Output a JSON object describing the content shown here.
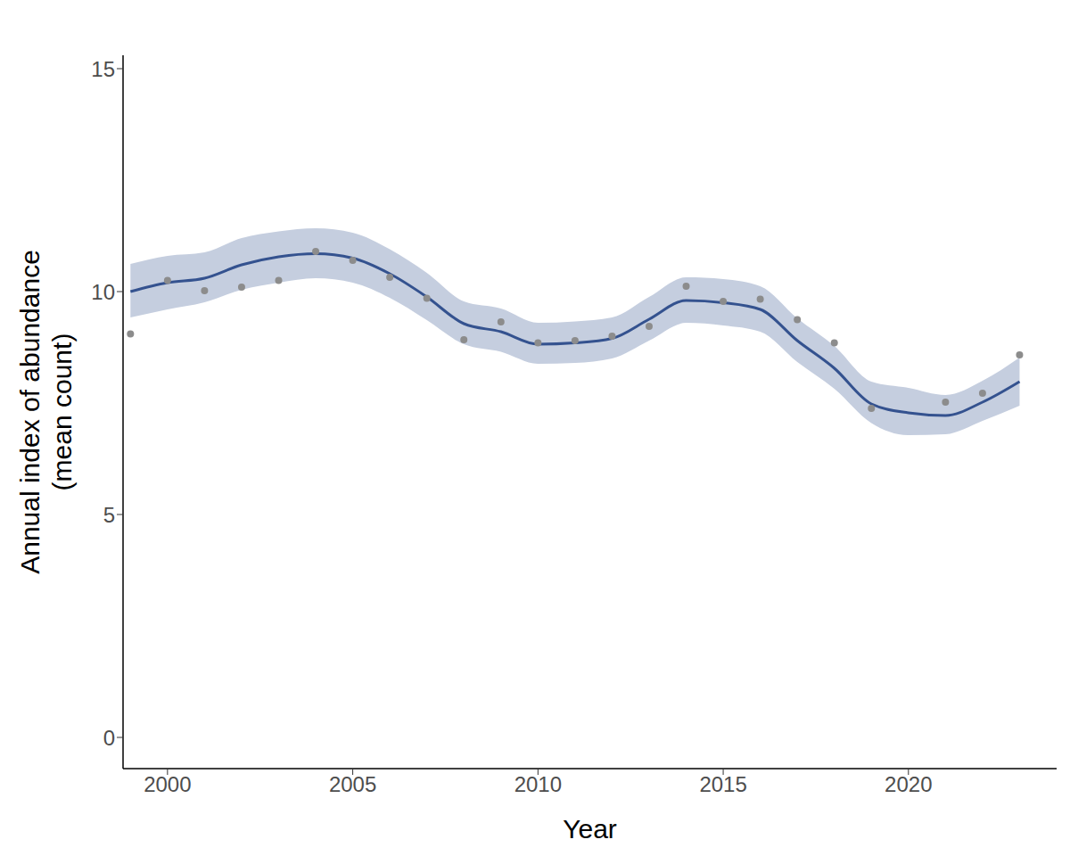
{
  "chart_data": {
    "type": "line",
    "xlabel": "Year",
    "ylabel": "Annual index of abundance\n(mean count)",
    "x": [
      1999,
      2000,
      2001,
      2002,
      2003,
      2004,
      2005,
      2006,
      2007,
      2008,
      2009,
      2010,
      2011,
      2012,
      2013,
      2014,
      2015,
      2016,
      2017,
      2018,
      2019,
      2020,
      2021,
      2022,
      2023
    ],
    "series": [
      {
        "type": "area",
        "color": "#c5cedf",
        "lower": [
          9.42,
          9.6,
          9.76,
          10.04,
          10.2,
          10.3,
          10.2,
          9.86,
          9.36,
          8.82,
          8.65,
          8.38,
          8.4,
          8.5,
          8.9,
          9.3,
          9.24,
          9.1,
          8.42,
          7.82,
          7.05,
          6.78,
          6.8,
          7.1,
          7.44
        ],
        "upper": [
          10.62,
          10.8,
          10.88,
          11.2,
          11.35,
          11.42,
          11.32,
          10.95,
          10.42,
          9.78,
          9.62,
          9.3,
          9.33,
          9.42,
          9.88,
          10.32,
          10.28,
          10.12,
          9.4,
          8.78,
          7.98,
          7.84,
          7.68,
          8.0,
          8.52
        ]
      },
      {
        "type": "scatter",
        "color": "#8c8c8c",
        "values": [
          9.05,
          10.25,
          10.02,
          10.1,
          10.25,
          10.9,
          10.7,
          10.32,
          9.85,
          8.92,
          9.32,
          8.85,
          8.9,
          9.0,
          9.22,
          10.12,
          9.78,
          9.83,
          9.37,
          8.85,
          7.38,
          null,
          7.52,
          7.72,
          8.58
        ]
      },
      {
        "type": "line",
        "color": "#34528f",
        "values": [
          10.0,
          10.2,
          10.3,
          10.6,
          10.78,
          10.85,
          10.75,
          10.4,
          9.88,
          9.28,
          9.1,
          8.82,
          8.85,
          8.95,
          9.38,
          9.8,
          9.75,
          9.6,
          8.9,
          8.28,
          7.48,
          7.28,
          7.22,
          7.52,
          7.98
        ]
      }
    ],
    "xlim": [
      1998.8,
      2024
    ],
    "xticks": [
      2000,
      2005,
      2010,
      2015,
      2020
    ],
    "ylim": [
      -0.7,
      15.3
    ],
    "yticks": [
      0,
      5,
      10,
      15
    ],
    "grid": false
  }
}
